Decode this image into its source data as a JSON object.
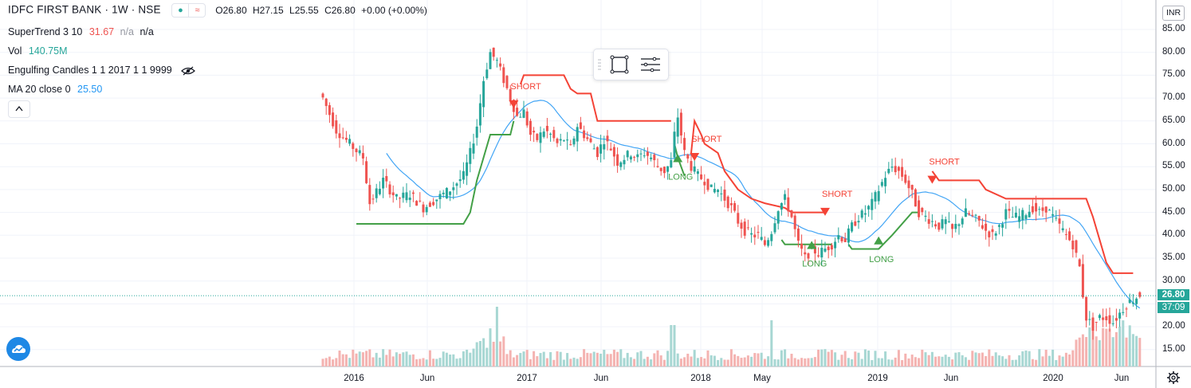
{
  "header": {
    "symbol": "IDFC FIRST BANK · 1W · NSE",
    "ohlc": {
      "o_label": "O",
      "o": "26.80",
      "h_label": "H",
      "h": "27.15",
      "l_label": "L",
      "l": "25.55",
      "c_label": "C",
      "c": "26.80",
      "change": "+0.00 (+0.00%)"
    }
  },
  "indicators": [
    {
      "name": "SuperTrend 3 10",
      "values": [
        "31.67",
        "n/a",
        "n/a"
      ],
      "colors": [
        "#ef5350",
        "#9598a1",
        "#131722"
      ]
    },
    {
      "name": "Vol",
      "values": [
        "140.75M"
      ],
      "colors": [
        "#26a69a"
      ]
    },
    {
      "name": "Engulfing Candles 1 1 2017 1 1 9999",
      "values": [],
      "colors": []
    },
    {
      "name": "MA 20 close 0",
      "values": [
        "25.50"
      ],
      "colors": [
        "#2196f3"
      ]
    }
  ],
  "currency_badge": "INR",
  "price_axis": [
    "85.00",
    "80.00",
    "75.00",
    "70.00",
    "65.00",
    "60.00",
    "55.00",
    "50.00",
    "45.00",
    "40.00",
    "35.00",
    "30.00",
    "20.00",
    "15.00"
  ],
  "price_tag": "26.80",
  "countdown_tag": "37:09",
  "time_axis": [
    {
      "label": "2016",
      "x": 444
    },
    {
      "label": "Jun",
      "x": 536
    },
    {
      "label": "2017",
      "x": 661
    },
    {
      "label": "Jun",
      "x": 754
    },
    {
      "label": "2018",
      "x": 879
    },
    {
      "label": "May",
      "x": 956
    },
    {
      "label": "2019",
      "x": 1101
    },
    {
      "label": "Jun",
      "x": 1193
    },
    {
      "label": "2020",
      "x": 1321
    },
    {
      "label": "Jun",
      "x": 1407
    }
  ],
  "chart_data": {
    "type": "candlestick",
    "symbol": "IDFC FIRST BANK",
    "interval": "1W",
    "ylim": [
      12,
      89
    ],
    "last_price": 26.8,
    "y_axis_ticks": [
      15,
      20,
      30,
      35,
      40,
      45,
      50,
      55,
      60,
      65,
      70,
      75,
      80,
      85
    ],
    "x_axis_ticks": [
      "2016",
      "Jun",
      "2017",
      "Jun",
      "2018",
      "May",
      "2019",
      "Jun",
      "2020",
      "Jun"
    ],
    "signals": [
      {
        "label": "SHORT",
        "type": "short",
        "date": "2016-12-19",
        "price": 69.5
      },
      {
        "label": "LONG",
        "type": "long",
        "date": "2018-01-01",
        "price": 56
      },
      {
        "label": "SHORT",
        "type": "short",
        "date": "2018-02-05",
        "price": 58
      },
      {
        "label": "LONG",
        "type": "long",
        "date": "2018-08-13",
        "price": 37
      },
      {
        "label": "SHORT",
        "type": "short",
        "date": "2018-09-17",
        "price": 46
      },
      {
        "label": "LONG",
        "type": "long",
        "date": "2019-01-07",
        "price": 38
      },
      {
        "label": "SHORT",
        "type": "short",
        "date": "2019-05-06",
        "price": 53
      }
    ],
    "series": [
      {
        "name": "SuperTrend 3 10",
        "color_up": "#4caf50",
        "color_down": "#ef5350"
      },
      {
        "name": "MA 20 close 0",
        "color": "#2196f3"
      },
      {
        "name": "Vol",
        "color_up": "#26a69a",
        "color_down": "#ef5350"
      }
    ]
  },
  "colors": {
    "up": "#26a69a",
    "down": "#ef5350",
    "st_up": "#43a047",
    "st_down": "#f44336",
    "ma": "#42a5f5",
    "grid": "#f0f3fa"
  }
}
